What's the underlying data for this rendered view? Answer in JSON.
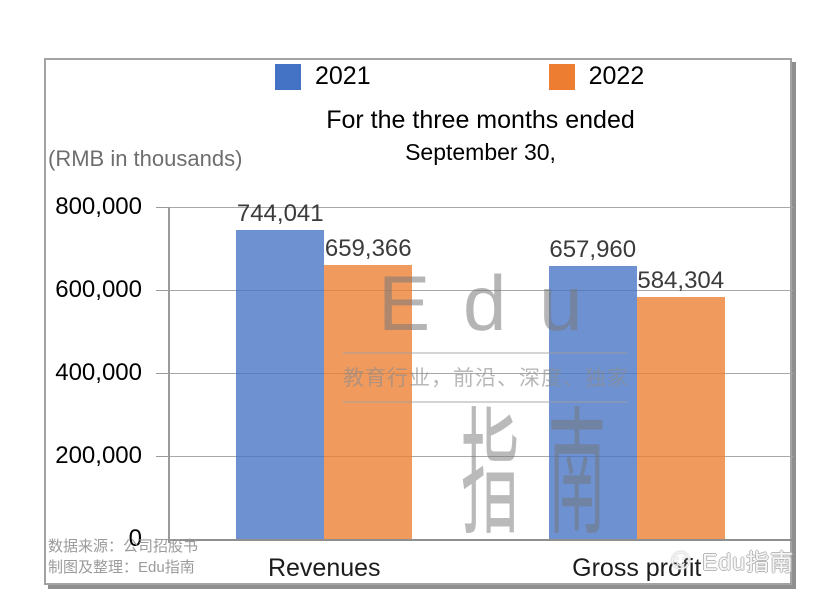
{
  "chart_data": {
    "type": "bar",
    "title_line1": "For the three months ended",
    "title_line2": "September 30,",
    "unit_label": "(RMB in thousands)",
    "categories": [
      "Revenues",
      "Gross profit"
    ],
    "series": [
      {
        "name": "2021",
        "color": "#4472C4",
        "values": [
          744041,
          657960
        ],
        "labels": [
          "744,041",
          "657,960"
        ]
      },
      {
        "name": "2022",
        "color": "#ED7D31",
        "values": [
          659366,
          584304
        ],
        "labels": [
          "659,366",
          "584,304"
        ]
      }
    ],
    "y_ticks": [
      {
        "value": 0,
        "label": "0"
      },
      {
        "value": 200000,
        "label": "200,000"
      },
      {
        "value": 400000,
        "label": "400,000"
      },
      {
        "value": 600000,
        "label": "600,000"
      },
      {
        "value": 800000,
        "label": "800,000"
      }
    ],
    "ylim": [
      0,
      800000
    ],
    "grid": true,
    "legend_position": "top-inside"
  },
  "watermark": {
    "brand_en": "Edu",
    "slogan": "教育行业，前沿、深度、独家",
    "brand_cn": "指南"
  },
  "footer": {
    "source": "数据来源：公司招股书",
    "credit": "制图及整理：Edu指南"
  },
  "stamp": {
    "face_icon": "smiley-face",
    "label": "Edu指南"
  }
}
